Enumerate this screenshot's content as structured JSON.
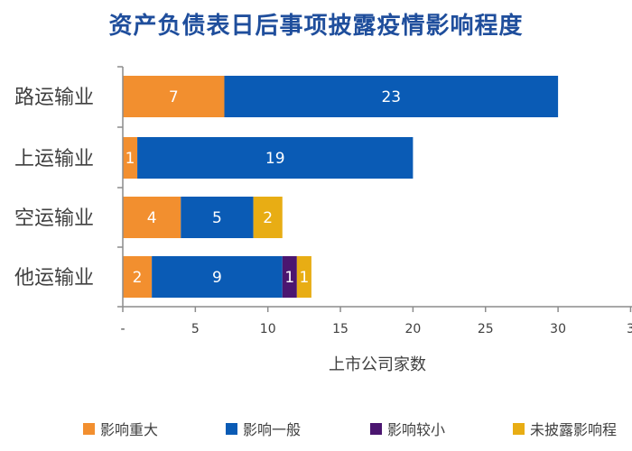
{
  "chart_data": {
    "type": "bar",
    "orientation": "horizontal",
    "stacked": true,
    "title": "资产负债表日后事项披露疫情影响程度",
    "xlabel": "上市公司家数",
    "ylabel": "",
    "categories": [
      "路运输业",
      "上运输业",
      "空运输业",
      "他运输业"
    ],
    "series": [
      {
        "name": "影响重大",
        "color": "#f28f2f",
        "values": [
          7,
          1,
          4,
          2
        ]
      },
      {
        "name": "影响一般",
        "color": "#0a5bb5",
        "values": [
          23,
          19,
          5,
          9
        ]
      },
      {
        "name": "影响较小",
        "color": "#4b1670",
        "values": [
          0,
          0,
          0,
          1
        ]
      },
      {
        "name": "未披露影响程",
        "color": "#e8ad14",
        "values": [
          0,
          0,
          2,
          1
        ]
      }
    ],
    "xlim": [
      0,
      30
    ],
    "xticks": [
      "-",
      "5",
      "10",
      "15",
      "20",
      "25",
      "30",
      "3"
    ],
    "grid": false,
    "legend": "bottom"
  }
}
